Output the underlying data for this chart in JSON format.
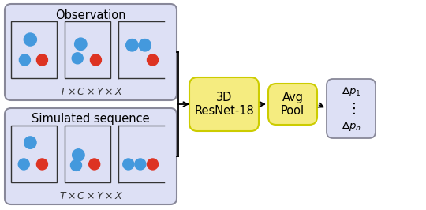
{
  "bg_color": "#ffffff",
  "obs_box_color": "#dde0f5",
  "sim_box_color": "#dde0f5",
  "resnet_box_color": "#f5ec80",
  "avgpool_box_color": "#f5ec80",
  "output_box_color": "#dde0f5",
  "inner_frame_bg": "#dde0f5",
  "blue_dot_color": "#4499dd",
  "red_dot_color": "#dd3322",
  "obs_label": "Observation",
  "sim_label": "Simulated sequence",
  "resnet_label": "3D\nResNet-18",
  "avgpool_label": "Avg\nPool",
  "fig_w": 5.4,
  "fig_h": 2.66,
  "dpi": 100
}
